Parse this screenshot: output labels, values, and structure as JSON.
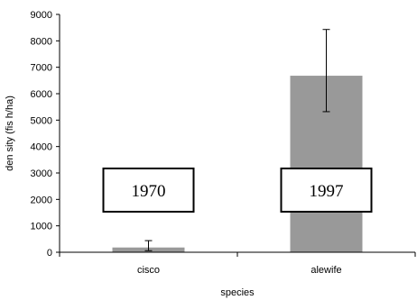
{
  "chart_data": {
    "type": "bar",
    "categories": [
      "cisco",
      "alewife"
    ],
    "values": [
      180,
      6680
    ],
    "error": [
      {
        "low": 60,
        "high": 440
      },
      {
        "low": 5320,
        "high": 8430
      }
    ],
    "xlabel": "species",
    "ylabel": "den sity (fis h/ha)",
    "ylim": [
      0,
      9000
    ],
    "yticks": [
      0,
      1000,
      2000,
      3000,
      4000,
      5000,
      6000,
      7000,
      8000,
      9000
    ],
    "grid": false,
    "bar_color": "#999999",
    "annotations": [
      {
        "category": "cisco",
        "text": "1970"
      },
      {
        "category": "alewife",
        "text": "1997"
      }
    ]
  }
}
